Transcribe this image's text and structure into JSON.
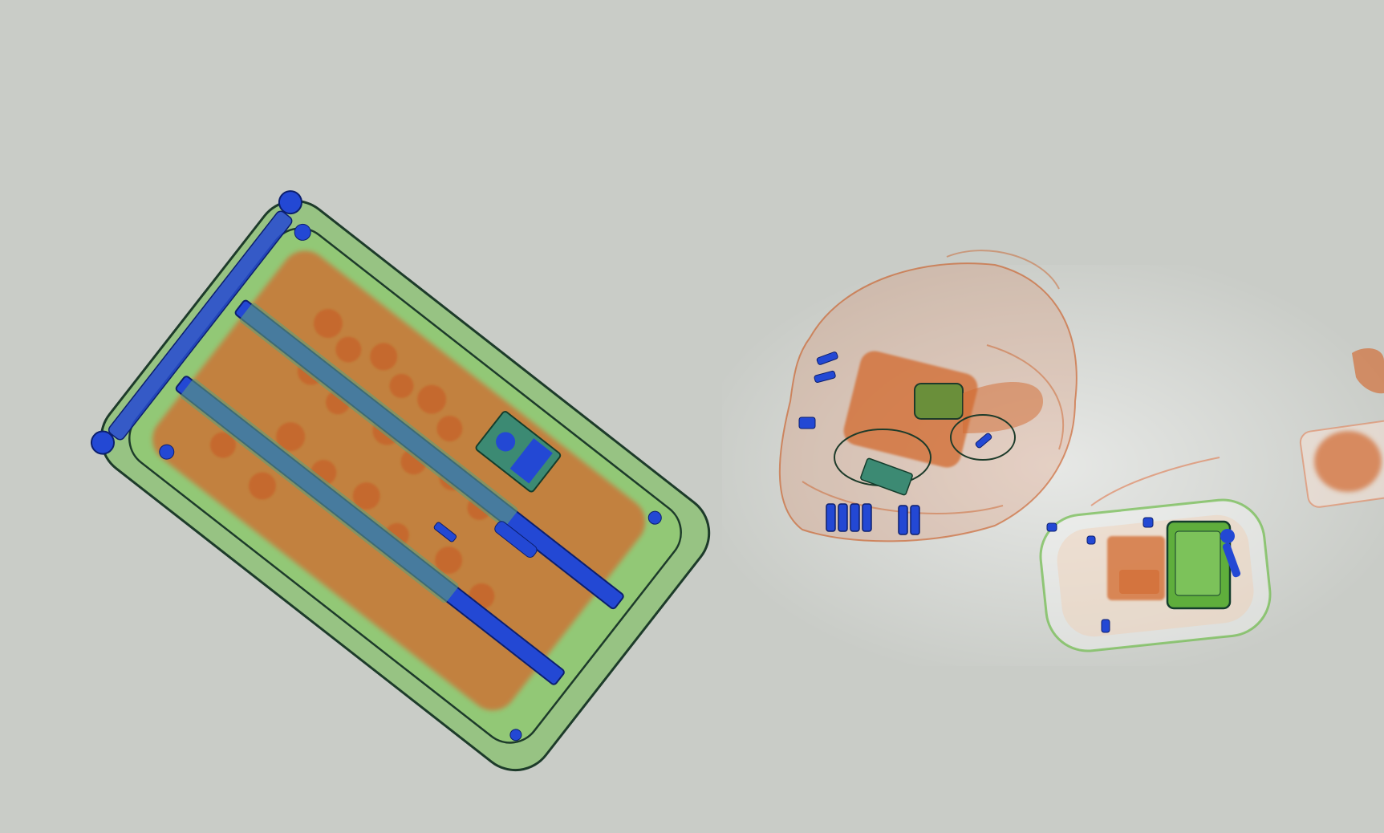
{
  "scan": {
    "background_color": "#c9ccc7",
    "colors": {
      "organic": "#d2692f",
      "mixed": "#5fae3c",
      "metal": "#2348d4",
      "outline": "#1d3b2a",
      "light_organic": "#e07a4e"
    },
    "objects": [
      {
        "name": "suitcase",
        "label": "",
        "material": "mixed"
      },
      {
        "name": "backpack",
        "label": "",
        "material": "organic"
      },
      {
        "name": "small-bag",
        "label": "",
        "material": "mixed"
      },
      {
        "name": "partial-item-right-edge",
        "label": "",
        "material": "organic"
      }
    ]
  }
}
